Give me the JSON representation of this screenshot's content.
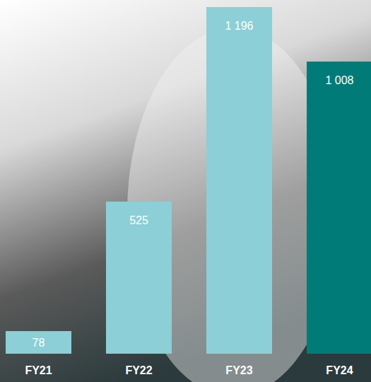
{
  "chart_data": {
    "type": "bar",
    "categories": [
      "FY21",
      "FY22",
      "FY23",
      "FY24"
    ],
    "values": [
      78,
      525,
      1196,
      1008
    ],
    "value_labels": [
      "78",
      "525",
      "1 196",
      "1 008"
    ],
    "colors": [
      "#8ccfd6",
      "#8ccfd6",
      "#8ccfd6",
      "#007b78"
    ],
    "data_labels": true,
    "tick_labels": "x"
  }
}
